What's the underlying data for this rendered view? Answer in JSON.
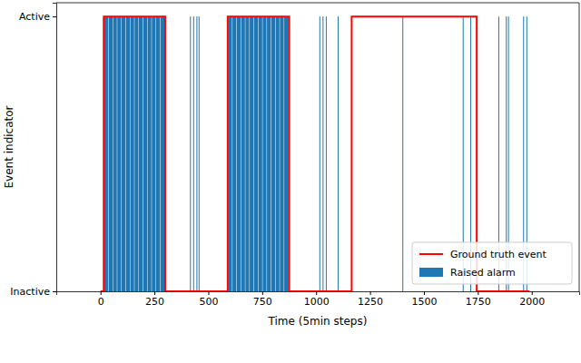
{
  "chart_data": {
    "type": "line",
    "x_label": "Time (5min steps)",
    "y_label": "Event indicator",
    "xlim": [
      -205,
      2220
    ],
    "ylim": [
      0,
      1.05
    ],
    "xticks": [
      0,
      250,
      500,
      750,
      1000,
      1250,
      1500,
      1750,
      2000
    ],
    "yticks": [
      {
        "value": 0,
        "label": "Inactive"
      },
      {
        "value": 1,
        "label": "Active"
      }
    ],
    "legend": "lower right",
    "series": [
      {
        "name": "Ground truth event",
        "type": "line",
        "color": "#ff0000",
        "x": [
          0,
          15,
          15,
          300,
          300,
          590,
          590,
          875,
          875,
          1165,
          1165,
          1745,
          1745,
          1990
        ],
        "values": [
          0,
          0,
          1,
          1,
          0,
          0,
          1,
          1,
          0,
          0,
          1,
          1,
          0,
          0
        ]
      },
      {
        "name": "Raised alarm",
        "type": "bar",
        "color": "#1f77b4",
        "intervals": [
          [
            18,
            36
          ],
          [
            38,
            56
          ],
          [
            58,
            76
          ],
          [
            78,
            96
          ],
          [
            98,
            116
          ],
          [
            118,
            136
          ],
          [
            138,
            156
          ],
          [
            158,
            176
          ],
          [
            178,
            196
          ],
          [
            198,
            216
          ],
          [
            218,
            236
          ],
          [
            238,
            256
          ],
          [
            258,
            276
          ],
          [
            278,
            298
          ],
          [
            592,
            610
          ],
          [
            612,
            630
          ],
          [
            632,
            650
          ],
          [
            652,
            670
          ],
          [
            672,
            690
          ],
          [
            692,
            710
          ],
          [
            712,
            730
          ],
          [
            732,
            750
          ],
          [
            752,
            770
          ],
          [
            772,
            790
          ],
          [
            792,
            810
          ],
          [
            812,
            830
          ],
          [
            832,
            850
          ],
          [
            852,
            872
          ],
          [
            415,
            416
          ],
          [
            430,
            431
          ],
          [
            445,
            446
          ],
          [
            455,
            456
          ],
          [
            1015,
            1016
          ],
          [
            1030,
            1031
          ],
          [
            1045,
            1046
          ],
          [
            1100,
            1101
          ],
          [
            1400,
            1401
          ],
          [
            1680,
            1681
          ],
          [
            1715,
            1716
          ],
          [
            1845,
            1846
          ],
          [
            1880,
            1881
          ],
          [
            1890,
            1891
          ],
          [
            1960,
            1961
          ],
          [
            1975,
            1976
          ]
        ],
        "values": [
          1,
          1,
          1,
          1,
          1,
          1,
          1,
          1,
          1,
          1,
          1,
          1,
          1,
          1,
          1,
          1,
          1,
          1,
          1,
          1,
          1,
          1,
          1,
          1,
          1,
          1,
          1,
          1,
          1,
          1,
          1,
          1,
          1,
          1,
          1,
          1,
          1,
          1,
          1,
          1,
          1,
          1,
          1,
          1
        ]
      }
    ]
  }
}
